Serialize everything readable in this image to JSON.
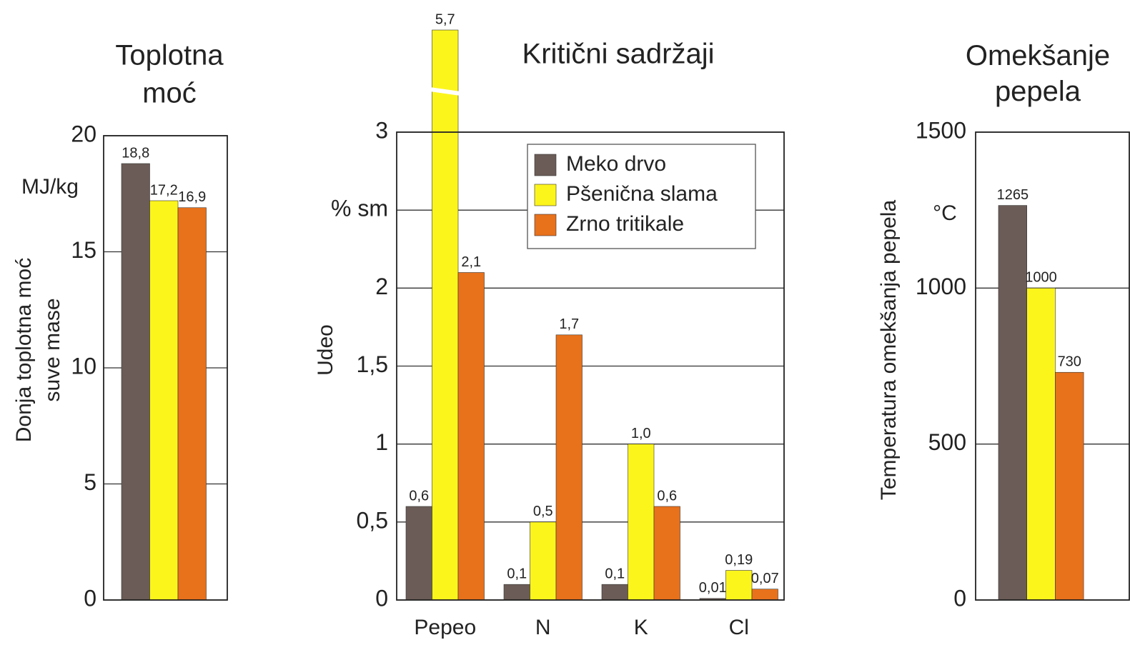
{
  "chart_data": [
    {
      "type": "bar",
      "title": "Toplotna moć",
      "ylabel": "Donja toplotna moć suve mase",
      "y_unit": "MJ/kg",
      "categories": [
        null
      ],
      "series": [
        {
          "color": "#6b5c57",
          "values": [
            18.8
          ],
          "value_labels": [
            "18,8"
          ]
        },
        {
          "color": "#fcf51c",
          "values": [
            17.2
          ],
          "value_labels": [
            "17,2"
          ]
        },
        {
          "color": "#e8711c",
          "values": [
            16.9
          ],
          "value_labels": [
            "16,9"
          ]
        }
      ],
      "ylim": [
        0,
        20
      ],
      "yticks": [
        0,
        5,
        10,
        15,
        20
      ],
      "grid": true
    },
    {
      "type": "bar",
      "title": "Kritični sadržaji",
      "ylabel": "Udeo",
      "categories": [
        "Pepeo",
        "N",
        "K",
        "Cl"
      ],
      "series": [
        {
          "name": "Meko drvo",
          "color": "#6b5c57",
          "values": [
            0.6,
            0.1,
            0.1,
            0.01
          ],
          "value_labels": [
            "0,6",
            "0,1",
            "0,1",
            "0,01"
          ]
        },
        {
          "name": "Pšenična slama",
          "color": "#fcf51c",
          "values": [
            5.7,
            0.5,
            1.0,
            0.19
          ],
          "value_labels": [
            "5,7",
            "0,5",
            "1,0",
            "0,19"
          ]
        },
        {
          "name": "Zrno tritikale",
          "color": "#e8711c",
          "values": [
            2.1,
            1.7,
            0.6,
            0.07
          ],
          "value_labels": [
            "2,1",
            "1,7",
            "0,6",
            "0,07"
          ]
        }
      ],
      "ylim": [
        0,
        3
      ],
      "yticks": [
        0,
        {
          "value": 0.5,
          "label": "0,5"
        },
        1,
        {
          "value": 1.5,
          "label": "1,5"
        },
        2,
        {
          "value": 2.5,
          "label": "% sm"
        },
        3
      ],
      "grid": true,
      "legend": "top-right"
    },
    {
      "type": "bar",
      "title": "Omekšanje pepela",
      "ylabel": "Temperatura omekšanja pepela",
      "y_unit": "°C",
      "categories": [
        null
      ],
      "series": [
        {
          "color": "#6b5c57",
          "values": [
            1265
          ]
        },
        {
          "color": "#fcf51c",
          "values": [
            1000
          ]
        },
        {
          "color": "#e8711c",
          "values": [
            730
          ]
        }
      ],
      "ylim": [
        0,
        1500
      ],
      "yticks": [
        0,
        500,
        1000,
        1500
      ],
      "grid": true
    }
  ]
}
